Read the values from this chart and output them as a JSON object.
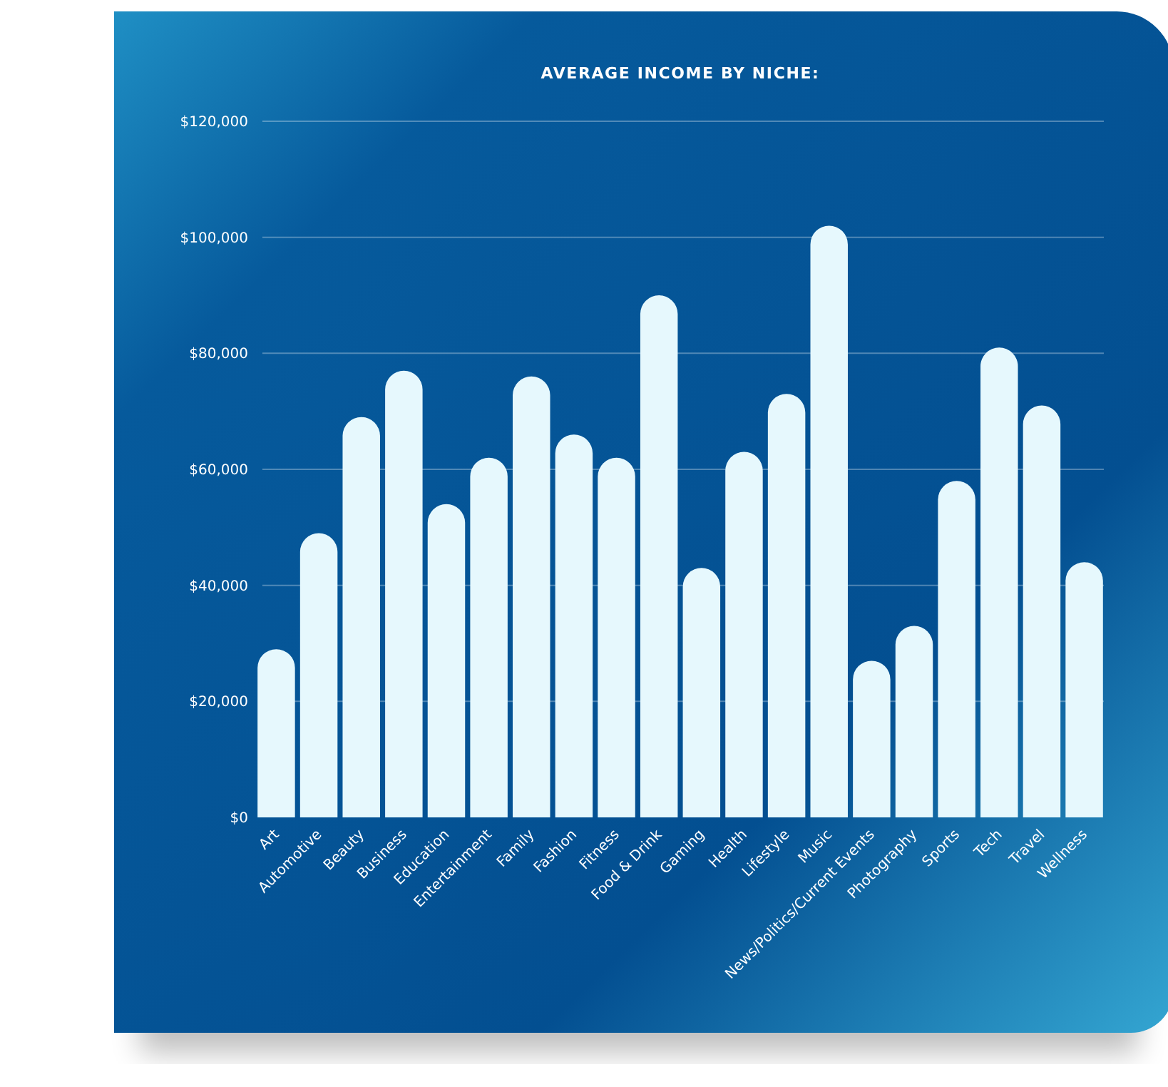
{
  "chart_data": {
    "type": "bar",
    "title": "AVERAGE INCOME BY NICHE:",
    "categories": [
      "Art",
      "Automotive",
      "Beauty",
      "Business",
      "Education",
      "Entertainment",
      "Family",
      "Fashion",
      "Fitness",
      "Food & Drink",
      "Gaming",
      "Health",
      "Lifestyle",
      "Music",
      "News/Politics/Current Events",
      "Photography",
      "Sports",
      "Tech",
      "Travel",
      "Wellness"
    ],
    "values": [
      29000,
      49000,
      69000,
      77000,
      54000,
      62000,
      76000,
      66000,
      62000,
      90000,
      43000,
      63000,
      73000,
      102000,
      27000,
      33000,
      58000,
      81000,
      71000,
      44000
    ],
    "color": "#e6f8fd",
    "ylim": [
      0,
      120000
    ],
    "yticks": [
      {
        "value": 0,
        "label": "$0"
      },
      {
        "value": 20000,
        "label": "$20,000"
      },
      {
        "value": 40000,
        "label": "$40,000"
      },
      {
        "value": 60000,
        "label": "$60,000"
      },
      {
        "value": 80000,
        "label": "$80,000"
      },
      {
        "value": 100000,
        "label": "$100,000"
      },
      {
        "value": 120000,
        "label": "$120,000"
      }
    ],
    "grid": "y"
  }
}
